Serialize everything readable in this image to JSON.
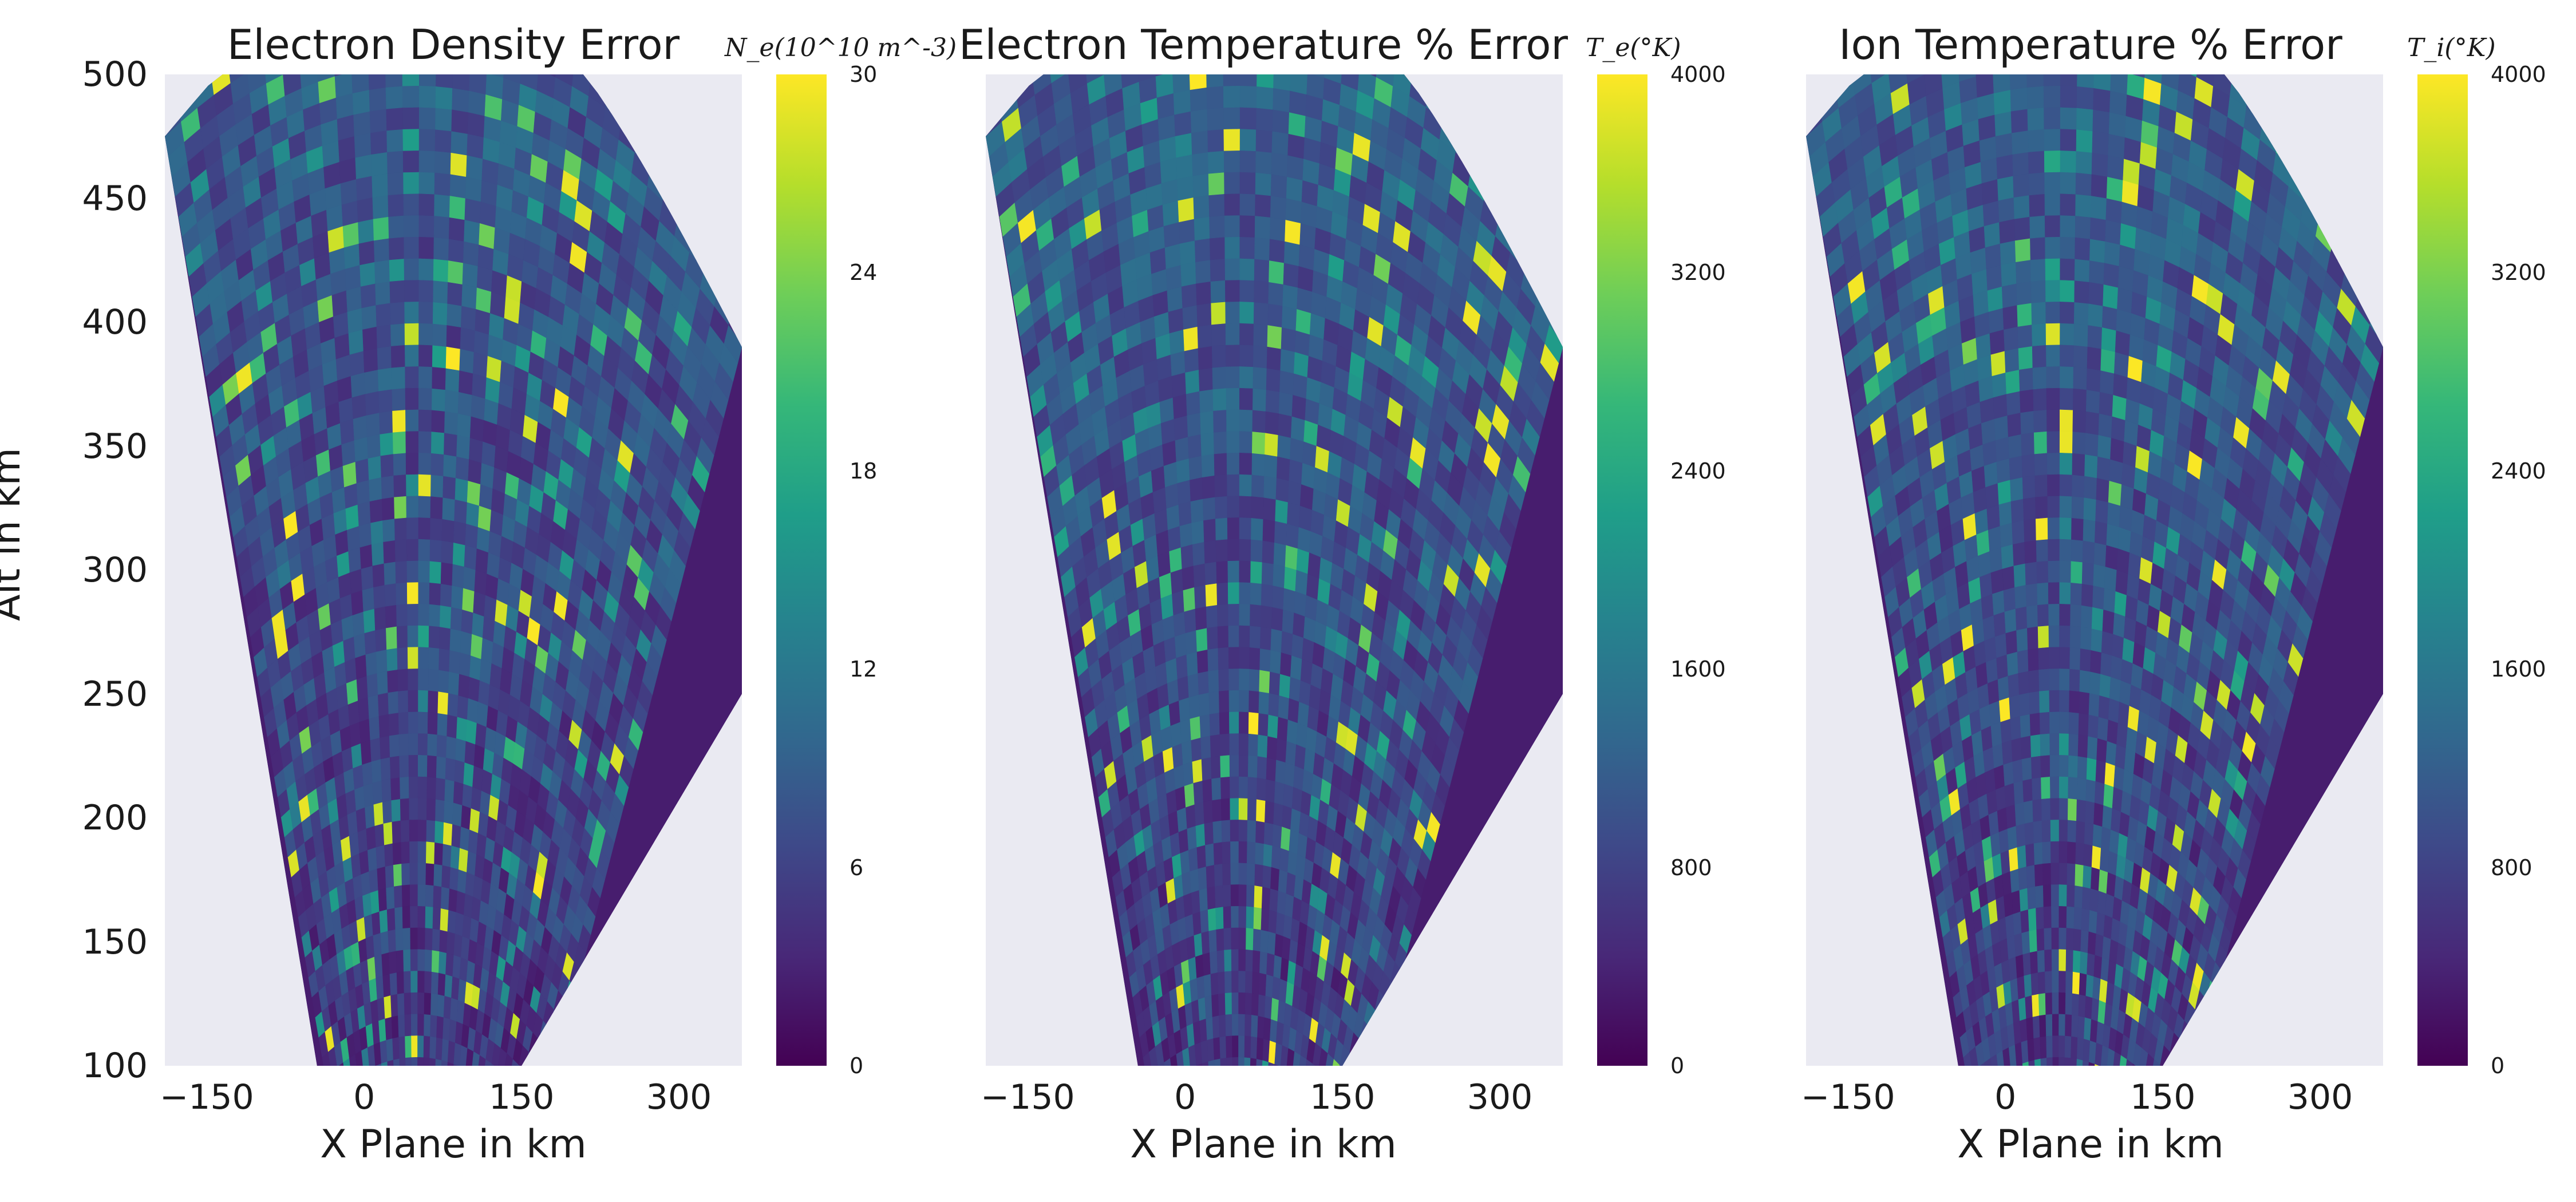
{
  "chart_data": [
    {
      "type": "heatmap",
      "projection": "fan",
      "title": "Electron Density Error",
      "xlabel": "X Plane in km",
      "ylabel": "Alt in km",
      "xticks": [
        "−150",
        "0",
        "150",
        "300"
      ],
      "yticks": [
        "100",
        "150",
        "200",
        "250",
        "300",
        "350",
        "400",
        "450",
        "500"
      ],
      "xlim": [
        -190,
        360
      ],
      "ylim": [
        100,
        500
      ],
      "fan_edges": {
        "left": [
          [
            -45,
            100
          ],
          [
            -190,
            475
          ]
        ],
        "right": [
          [
            150,
            100
          ],
          [
            360,
            250
          ],
          [
            360,
            390
          ]
        ]
      },
      "colorbar": {
        "label": "N_e(10^10 m^-3)",
        "ticks": [
          "0",
          "6",
          "12",
          "18",
          "24",
          "30"
        ],
        "range": [
          0,
          30
        ]
      },
      "colormap": "viridis",
      "background": "#eaeaf2",
      "show_ylabel": true
    },
    {
      "type": "heatmap",
      "projection": "fan",
      "title": "Electron Temperature % Error",
      "xlabel": "X Plane in km",
      "ylabel": "",
      "xticks": [
        "−150",
        "0",
        "150",
        "300"
      ],
      "yticks": [],
      "xlim": [
        -190,
        360
      ],
      "ylim": [
        100,
        500
      ],
      "fan_edges": {
        "left": [
          [
            -45,
            100
          ],
          [
            -190,
            475
          ]
        ],
        "right": [
          [
            150,
            100
          ],
          [
            360,
            250
          ],
          [
            360,
            390
          ]
        ]
      },
      "colorbar": {
        "label": "T_e(°K)",
        "ticks": [
          "0",
          "800",
          "1600",
          "2400",
          "3200",
          "4000"
        ],
        "range": [
          0,
          4000
        ]
      },
      "colormap": "viridis",
      "background": "#eaeaf2",
      "show_ylabel": false
    },
    {
      "type": "heatmap",
      "projection": "fan",
      "title": "Ion Temperature % Error",
      "xlabel": "X Plane in km",
      "ylabel": "",
      "xticks": [
        "−150",
        "0",
        "150",
        "300"
      ],
      "yticks": [],
      "xlim": [
        -190,
        360
      ],
      "ylim": [
        100,
        500
      ],
      "fan_edges": {
        "left": [
          [
            -45,
            100
          ],
          [
            -190,
            475
          ]
        ],
        "right": [
          [
            150,
            100
          ],
          [
            360,
            250
          ],
          [
            360,
            390
          ]
        ]
      },
      "colorbar": {
        "label": "T_i(°K)",
        "ticks": [
          "0",
          "800",
          "1600",
          "2400",
          "3200",
          "4000"
        ],
        "range": [
          0,
          4000
        ]
      },
      "colormap": "viridis",
      "background": "#eaeaf2",
      "show_ylabel": false
    }
  ],
  "colors": {
    "viridis": [
      "#440154",
      "#482878",
      "#3e4989",
      "#31688e",
      "#26828e",
      "#1f9e89",
      "#35b779",
      "#6ece58",
      "#b5de2b",
      "#fde725"
    ],
    "plot_background": "#eaeaf2"
  }
}
